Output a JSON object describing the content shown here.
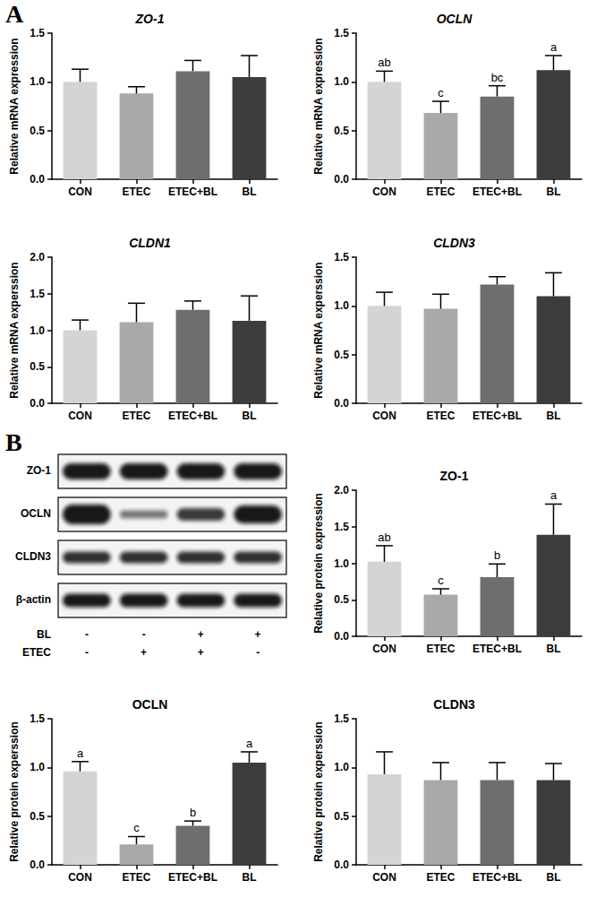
{
  "panels": [
    "A",
    "B"
  ],
  "blot": {
    "rows": [
      "ZO-1",
      "OCLN",
      "CLDN3",
      "β-actin"
    ],
    "treatments": [
      {
        "name": "BL",
        "signs": [
          "-",
          "-",
          "+",
          "+"
        ]
      },
      {
        "name": "ETEC",
        "signs": [
          "-",
          "+",
          "+",
          "-"
        ]
      }
    ]
  },
  "chart_data": [
    {
      "type": "bar",
      "title": "ZO-1",
      "ylabel": "Relative mRNA expression",
      "categories": [
        "CON",
        "ETEC",
        "ETEC+BL",
        "BL"
      ],
      "values": [
        1.0,
        0.88,
        1.11,
        1.05
      ],
      "errors": [
        0.13,
        0.07,
        0.11,
        0.22
      ],
      "colors": [
        "#d4d4d4",
        "#a9a9a9",
        "#6e6e6e",
        "#3c3c3c"
      ],
      "ylim": [
        0,
        1.5
      ],
      "yticks": [
        {
          "value": 0,
          "label": "0.0"
        },
        {
          "value": 0.5,
          "label": "0.5"
        },
        {
          "value": 1,
          "label": "1.0"
        },
        {
          "value": 1.5,
          "label": "1.5"
        }
      ],
      "grid": false
    },
    {
      "type": "bar",
      "title": "OCLN",
      "ylabel": "Relative mRNA expression",
      "categories": [
        "CON",
        "ETEC",
        "ETEC+BL",
        "BL"
      ],
      "values": [
        1.0,
        0.68,
        0.85,
        1.12
      ],
      "errors": [
        0.11,
        0.12,
        0.11,
        0.15
      ],
      "letters": [
        "ab",
        "c",
        "bc",
        "a"
      ],
      "colors": [
        "#d4d4d4",
        "#a9a9a9",
        "#6e6e6e",
        "#3c3c3c"
      ],
      "ylim": [
        0,
        1.5
      ],
      "yticks": [
        {
          "value": 0,
          "label": "0.0"
        },
        {
          "value": 0.5,
          "label": "0.5"
        },
        {
          "value": 1,
          "label": "1.0"
        },
        {
          "value": 1.5,
          "label": "1.5"
        }
      ],
      "grid": false
    },
    {
      "type": "bar",
      "title": "CLDN1",
      "ylabel": "Relative mRNA experssion",
      "categories": [
        "CON",
        "ETEC",
        "ETEC+BL",
        "BL"
      ],
      "values": [
        1.0,
        1.11,
        1.28,
        1.13
      ],
      "errors": [
        0.14,
        0.26,
        0.12,
        0.34
      ],
      "colors": [
        "#d4d4d4",
        "#a9a9a9",
        "#6e6e6e",
        "#3c3c3c"
      ],
      "ylim": [
        0,
        2
      ],
      "yticks": [
        {
          "value": 0,
          "label": "0.0"
        },
        {
          "value": 0.5,
          "label": "0.5"
        },
        {
          "value": 1,
          "label": "1.0"
        },
        {
          "value": 1.5,
          "label": "1.5"
        },
        {
          "value": 2,
          "label": "2.0"
        }
      ],
      "grid": false
    },
    {
      "type": "bar",
      "title": "CLDN3",
      "ylabel": "Relative mRNA experssion",
      "categories": [
        "CON",
        "ETEC",
        "ETEC+BL",
        "BL"
      ],
      "values": [
        1.0,
        0.97,
        1.22,
        1.1
      ],
      "errors": [
        0.14,
        0.15,
        0.08,
        0.24
      ],
      "colors": [
        "#d4d4d4",
        "#a9a9a9",
        "#6e6e6e",
        "#3c3c3c"
      ],
      "ylim": [
        0,
        1.5
      ],
      "yticks": [
        {
          "value": 0,
          "label": "0.0"
        },
        {
          "value": 0.5,
          "label": "0.5"
        },
        {
          "value": 1,
          "label": "1.0"
        },
        {
          "value": 1.5,
          "label": "1.5"
        }
      ],
      "grid": false
    },
    {
      "type": "bar",
      "title": "ZO-1",
      "ylabel": "Relative protein expression",
      "categories": [
        "CON",
        "ETEC",
        "ETEC+BL",
        "BL"
      ],
      "values": [
        1.02,
        0.57,
        0.81,
        1.39
      ],
      "errors": [
        0.22,
        0.08,
        0.18,
        0.42
      ],
      "letters": [
        "ab",
        "c",
        "b",
        "a"
      ],
      "colors": [
        "#d4d4d4",
        "#a9a9a9",
        "#6e6e6e",
        "#3c3c3c"
      ],
      "ylim": [
        0,
        2
      ],
      "yticks": [
        {
          "value": 0,
          "label": "0.0"
        },
        {
          "value": 0.5,
          "label": "0.5"
        },
        {
          "value": 1,
          "label": "1.0"
        },
        {
          "value": 1.5,
          "label": "1.5"
        },
        {
          "value": 2,
          "label": "2.0"
        }
      ],
      "grid": false
    },
    {
      "type": "bar",
      "title": "OCLN",
      "ylabel": "Relative protein experssion",
      "categories": [
        "CON",
        "ETEC",
        "ETEC+BL",
        "BL"
      ],
      "values": [
        0.96,
        0.21,
        0.4,
        1.05
      ],
      "errors": [
        0.1,
        0.08,
        0.05,
        0.11
      ],
      "letters": [
        "a",
        "c",
        "b",
        "a"
      ],
      "colors": [
        "#d4d4d4",
        "#a9a9a9",
        "#6e6e6e",
        "#3c3c3c"
      ],
      "ylim": [
        0,
        1.5
      ],
      "yticks": [
        {
          "value": 0,
          "label": "0.0"
        },
        {
          "value": 0.5,
          "label": "0.5"
        },
        {
          "value": 1,
          "label": "1.0"
        },
        {
          "value": 1.5,
          "label": "1.5"
        }
      ],
      "grid": false
    },
    {
      "type": "bar",
      "title": "CLDN3",
      "ylabel": "Relative protein experssion",
      "categories": [
        "CON",
        "ETEC",
        "ETEC+BL",
        "BL"
      ],
      "values": [
        0.93,
        0.87,
        0.87,
        0.87
      ],
      "errors": [
        0.23,
        0.18,
        0.18,
        0.17
      ],
      "colors": [
        "#d4d4d4",
        "#a9a9a9",
        "#6e6e6e",
        "#3c3c3c"
      ],
      "ylim": [
        0,
        1.5
      ],
      "yticks": [
        {
          "value": 0,
          "label": "0.0"
        },
        {
          "value": 0.5,
          "label": "0.5"
        },
        {
          "value": 1,
          "label": "1.0"
        },
        {
          "value": 1.5,
          "label": "1.5"
        }
      ],
      "grid": false
    }
  ]
}
